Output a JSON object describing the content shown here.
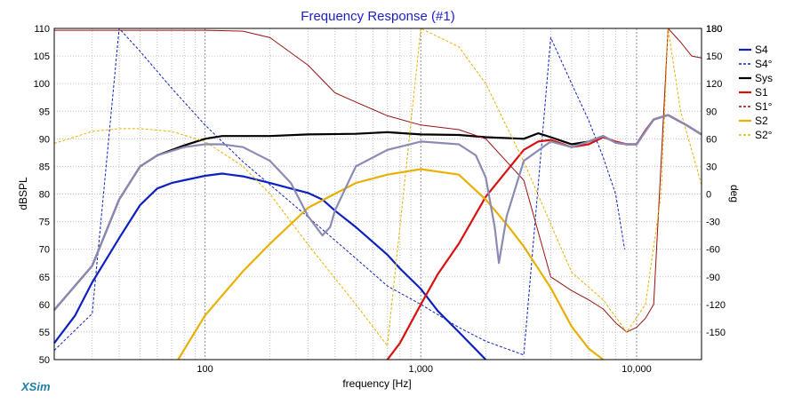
{
  "colors": {
    "s4": "#0d20c0",
    "s4_phase": "#0d20c0",
    "sys": "#000000",
    "s1": "#d81010",
    "s1_phase": "#9a1010",
    "s2": "#e8b000",
    "s2_phase": "#e8b000",
    "sys_gray": "#8a8ab4",
    "title": "#1d1dcc",
    "brand": "#1d7fa8"
  },
  "chart_data": {
    "type": "line",
    "title": "Frequency Response (#1)",
    "xlabel": "frequency [Hz]",
    "ylabel": "dBSPL",
    "y2label": "deg",
    "xscale": "log",
    "xlim": [
      20,
      20000
    ],
    "ylim": [
      50,
      110
    ],
    "y2lim": [
      -180,
      180
    ],
    "grid": true,
    "legend_position": "right",
    "x_ticks": [
      "100",
      "1,000",
      "10,000"
    ],
    "x_tick_values": [
      100,
      1000,
      10000
    ],
    "y_ticks": [
      50,
      55,
      60,
      65,
      70,
      75,
      80,
      85,
      90,
      95,
      100,
      105,
      110
    ],
    "y2_ticks": [
      -150,
      -120,
      -90,
      -60,
      -30,
      0,
      30,
      60,
      90,
      120,
      150,
      180
    ],
    "legend": [
      "S4",
      "S4°",
      "Sys",
      "S1",
      "S1°",
      "S2",
      "S2°"
    ],
    "series": [
      {
        "name": "S4",
        "axis": "left",
        "style": "solid",
        "color_key": "s4",
        "x": [
          20,
          25,
          30,
          40,
          50,
          60,
          70,
          80,
          100,
          120,
          150,
          200,
          250,
          300,
          350,
          400,
          500,
          600,
          700,
          800,
          1000,
          1200,
          1500,
          2000
        ],
        "y": [
          53,
          58,
          64,
          72,
          78,
          81,
          82,
          82.5,
          83.3,
          83.7,
          83.2,
          82,
          81,
          80.2,
          79,
          77,
          74,
          71.3,
          69,
          66.5,
          62.8,
          58.8,
          55,
          50
        ]
      },
      {
        "name": "S4°",
        "axis": "right",
        "style": "dashed",
        "color_key": "s4_phase",
        "x": [
          20,
          30,
          40,
          50,
          70,
          100,
          150,
          200,
          300,
          500,
          700,
          1000,
          1500,
          2000,
          3000,
          4000,
          5000,
          6000,
          7000,
          8000,
          8800
        ],
        "y": [
          -170,
          -130,
          180,
          155,
          115,
          75,
          35,
          10,
          -25,
          -70,
          -100,
          -120,
          -145,
          -160,
          -175,
          170,
          120,
          80,
          40,
          0,
          -60
        ]
      },
      {
        "name": "Sys",
        "axis": "left",
        "style": "solid",
        "color_key": "sys",
        "x": [
          20,
          30,
          40,
          50,
          60,
          80,
          100,
          120,
          150,
          200,
          300,
          500,
          700,
          1000,
          1500,
          2000,
          3000,
          3500,
          4000,
          5000,
          6000,
          7000,
          8000,
          9000,
          10000,
          11000,
          12000,
          14000,
          17000,
          20000
        ],
        "y": [
          59,
          67,
          79,
          85,
          87,
          88.8,
          90,
          90.5,
          90.5,
          90.5,
          90.8,
          90.9,
          91.2,
          90.8,
          90.7,
          90.3,
          90,
          91,
          90.3,
          89,
          89.5,
          90.5,
          89.3,
          89,
          89,
          91.5,
          93.5,
          94.3,
          92.5,
          90.8
        ]
      },
      {
        "name": "S1",
        "axis": "left",
        "style": "solid",
        "color_key": "s1",
        "x": [
          700,
          800,
          1000,
          1200,
          1500,
          2000,
          2500,
          3000,
          3500,
          4000,
          5000,
          6000,
          7000,
          8000,
          9000,
          10000,
          11000,
          12000,
          14000,
          17000,
          20000
        ],
        "y": [
          50,
          53,
          60,
          65.5,
          71,
          79.5,
          84.2,
          88,
          89.5,
          89.8,
          88.5,
          89,
          90.3,
          89.5,
          89,
          89,
          91.5,
          93.5,
          94.3,
          92.5,
          90.8
        ]
      },
      {
        "name": "S1°",
        "axis": "right",
        "style": "solid",
        "color_key": "s1_phase",
        "x": [
          20,
          50,
          100,
          150,
          200,
          300,
          400,
          500,
          700,
          1000,
          1500,
          2000,
          3000,
          4000,
          5000,
          6000,
          7000,
          8000,
          9000,
          10000,
          11000,
          12000,
          14000,
          16000,
          18000,
          20000
        ],
        "y": [
          178,
          178,
          178,
          177,
          170,
          140,
          110,
          100,
          85,
          75,
          70,
          60,
          15,
          -90,
          -105,
          -115,
          -125,
          -140,
          -150,
          -145,
          -135,
          -120,
          180,
          165,
          150,
          148
        ]
      },
      {
        "name": "S2",
        "axis": "left",
        "style": "solid",
        "color_key": "s2",
        "x": [
          75,
          100,
          150,
          200,
          300,
          500,
          700,
          1000,
          1500,
          2000,
          2500,
          3000,
          4000,
          5000,
          6000,
          7000
        ],
        "y": [
          50,
          58,
          66,
          71,
          77.5,
          82,
          83.5,
          84.5,
          83.5,
          79,
          74.5,
          70.5,
          63,
          56,
          52,
          50
        ]
      },
      {
        "name": "S2°",
        "axis": "right",
        "style": "dashed",
        "color_key": "s2_phase",
        "x": [
          20,
          30,
          40,
          50,
          70,
          100,
          150,
          200,
          300,
          500,
          700,
          1000,
          1500,
          2000,
          3000,
          5000,
          7000,
          9000,
          11000,
          13000,
          14000,
          16000,
          20000
        ],
        "y": [
          55,
          68,
          71,
          71,
          68,
          57,
          30,
          0,
          -55,
          -120,
          -165,
          180,
          160,
          120,
          35,
          -85,
          -115,
          -150,
          -120,
          0,
          180,
          90,
          10
        ]
      },
      {
        "name": "",
        "axis": "left",
        "style": "solid",
        "color_key": "sys_gray",
        "x": [
          20,
          30,
          40,
          50,
          60,
          80,
          100,
          120,
          150,
          200,
          250,
          300,
          350,
          380,
          400,
          500,
          700,
          1000,
          1500,
          1800,
          2000,
          2200,
          2300,
          2500,
          3000,
          4000,
          5000,
          6000,
          7000,
          8000,
          9000,
          10000,
          12000,
          14000,
          17000,
          20000
        ],
        "y": [
          59,
          67,
          79,
          85,
          87,
          88.5,
          89,
          89,
          88.5,
          86,
          82,
          76,
          72.5,
          74,
          77,
          85,
          88,
          89.5,
          89,
          87,
          83,
          74,
          67.5,
          76,
          86,
          89.5,
          88.5,
          89.5,
          90.5,
          89.3,
          89,
          89,
          93.5,
          94.3,
          92.5,
          90.8
        ]
      }
    ]
  },
  "brand": "XSim"
}
